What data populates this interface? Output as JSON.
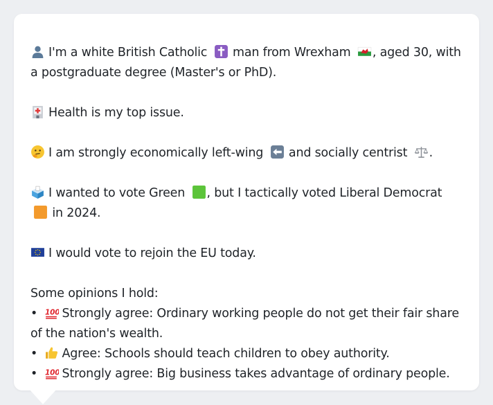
{
  "profile": {
    "line1_pre": "I'm a white British Catholic",
    "line1_mid": "man from Wrexham",
    "line1_post": ", aged 30, with a postgraduate degree (Master's or PhD).",
    "health": "Health is my top issue.",
    "econ_pre": "I am strongly economically left-wing",
    "econ_mid": "and socially centrist",
    "econ_post": ".",
    "vote_pre": "I wanted to vote Green",
    "vote_mid": ", but I tactically voted Liberal Democrat",
    "vote_post": "in 2024.",
    "eu": "I would vote to rejoin the EU today."
  },
  "opinions": {
    "heading": "Some opinions I hold:",
    "items": [
      {
        "bullet": "•",
        "level": "Strongly agree:",
        "text": "Ordinary working people do not get their fair share of the nation's wealth.",
        "icon": "hundred-points-icon"
      },
      {
        "bullet": "•",
        "level": "Agree:",
        "text": "Schools should teach children to obey authority.",
        "icon": "thumbs-up-icon"
      },
      {
        "bullet": "•",
        "level": "Strongly agree:",
        "text": "Big business takes advantage of ordinary people.",
        "icon": "hundred-points-icon"
      }
    ]
  },
  "colors": {
    "green_square": "#5cc43a",
    "orange_square": "#f39a2c",
    "text": "#1f2328",
    "background": "#edeff2",
    "card": "#ffffff"
  }
}
